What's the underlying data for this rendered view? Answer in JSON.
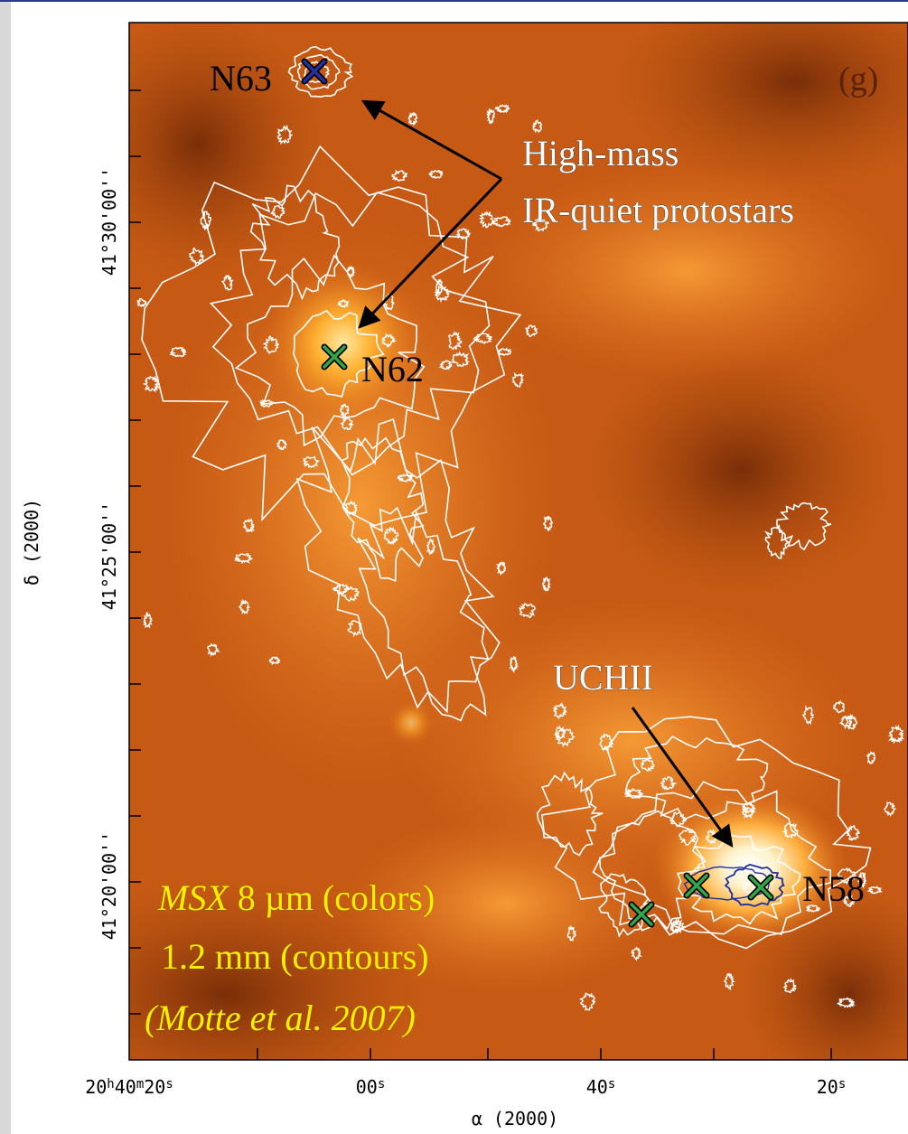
{
  "figure": {
    "panel_label": "(g)",
    "sources": {
      "n63": "N63",
      "n62": "N62",
      "n58": "N58"
    },
    "annotations": {
      "protostars_line1": "High-mass",
      "protostars_line2": "IR-quiet protostars",
      "uchii": "UCHII"
    },
    "legend": {
      "line1_italic": "MSX",
      "line1_rest": " 8 µm (colors)",
      "line2": "1.2 mm (contours)",
      "line3": "(Motte et al. 2007)"
    },
    "y_axis": {
      "label": "δ (2000)",
      "tick_labels": [
        "41°30'00''",
        "41°25'00''",
        "41°20'00''"
      ]
    },
    "x_axis": {
      "label": "α (2000)",
      "tick_labels": [
        [
          "20",
          "h",
          "40",
          "m",
          "20",
          "s"
        ],
        [
          "00",
          "s"
        ],
        [
          "40",
          "s"
        ],
        [
          "20",
          "s"
        ]
      ]
    }
  }
}
